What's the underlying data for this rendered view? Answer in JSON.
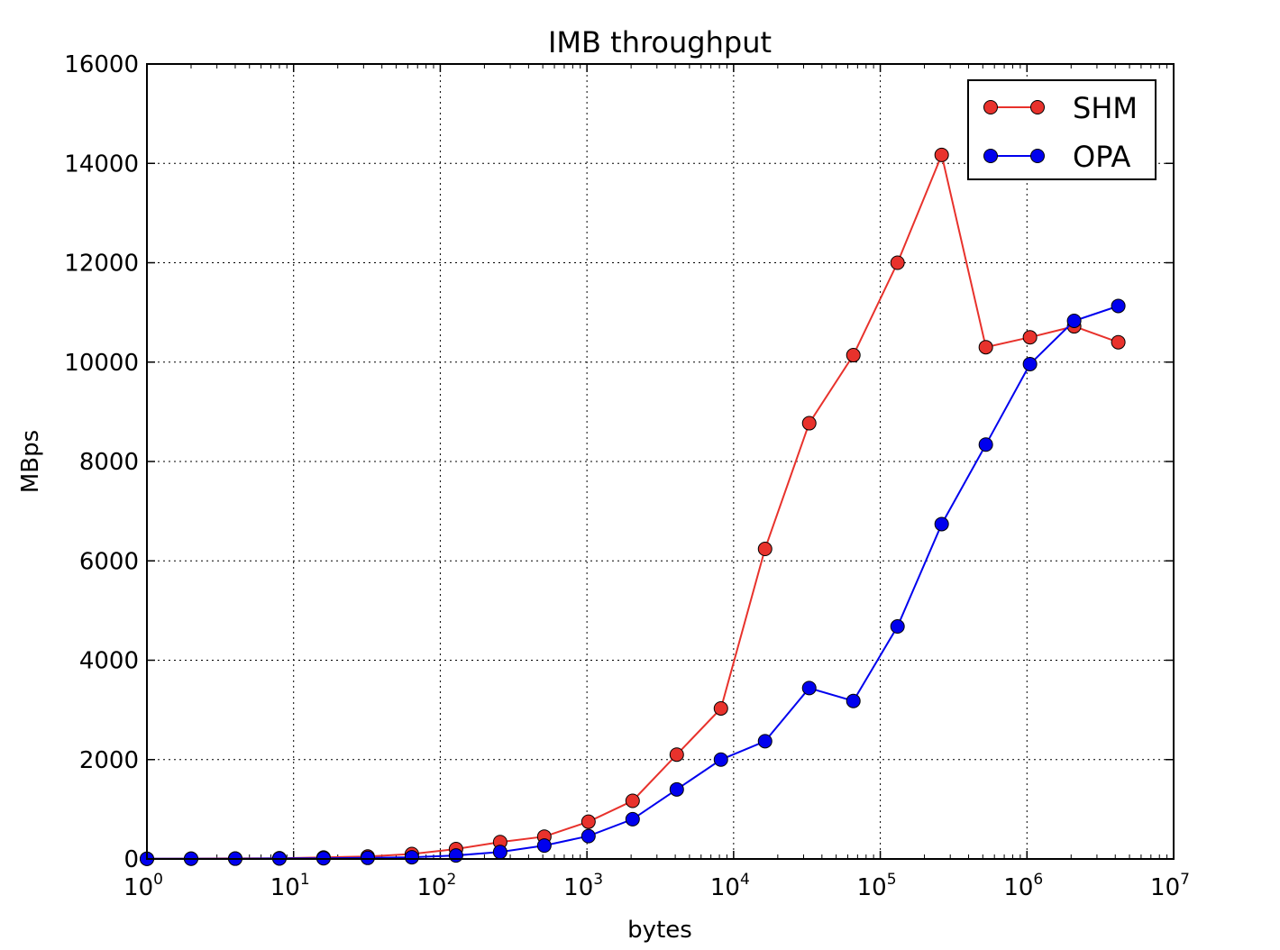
{
  "chart_data": {
    "type": "line",
    "title": "IMB throughput",
    "xlabel": "bytes",
    "ylabel": "MBps",
    "xscale": "log",
    "xlim": [
      1,
      10000000
    ],
    "ylim": [
      0,
      16000
    ],
    "grid": true,
    "legend_position": "top-right",
    "y_ticks": [
      0,
      2000,
      4000,
      6000,
      8000,
      10000,
      12000,
      14000,
      16000
    ],
    "x_ticks": [
      {
        "base": "10",
        "exp": "0"
      },
      {
        "base": "10",
        "exp": "1"
      },
      {
        "base": "10",
        "exp": "2"
      },
      {
        "base": "10",
        "exp": "3"
      },
      {
        "base": "10",
        "exp": "4"
      },
      {
        "base": "10",
        "exp": "5"
      },
      {
        "base": "10",
        "exp": "6"
      },
      {
        "base": "10",
        "exp": "7"
      }
    ],
    "x": [
      1,
      2,
      4,
      8,
      16,
      32,
      64,
      128,
      256,
      512,
      1024,
      2048,
      4096,
      8192,
      16384,
      32768,
      65536,
      131072,
      262144,
      524288,
      1048576,
      2097152,
      4194304
    ],
    "series": [
      {
        "name": "SHM",
        "color": "#e8322c",
        "values": [
          5,
          7,
          10,
          15,
          30,
          50,
          100,
          200,
          340,
          450,
          750,
          1170,
          2100,
          3030,
          6240,
          8770,
          10140,
          12000,
          14170,
          10300,
          10500,
          10720,
          10400
        ]
      },
      {
        "name": "OPA",
        "color": "#0000ee",
        "values": [
          3,
          5,
          6,
          10,
          14,
          22,
          35,
          70,
          140,
          270,
          460,
          800,
          1400,
          2000,
          2370,
          3440,
          3180,
          4680,
          6740,
          8340,
          9960,
          10830,
          11130
        ]
      }
    ]
  }
}
